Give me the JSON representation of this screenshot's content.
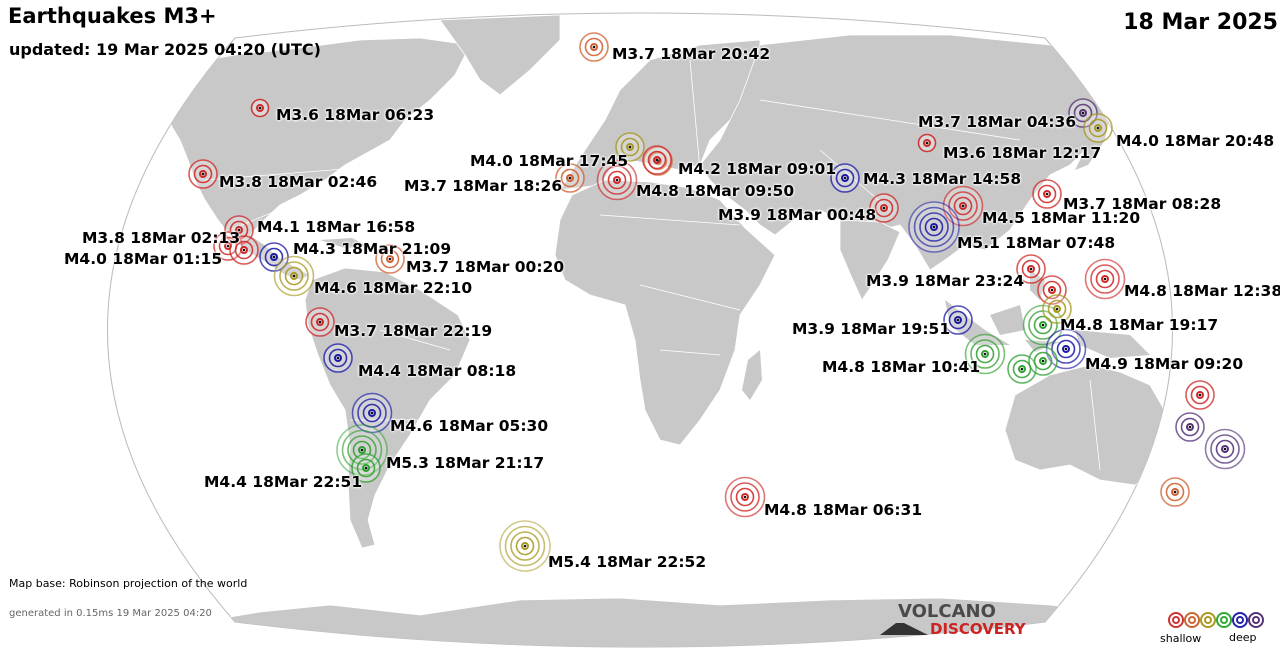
{
  "header": {
    "title": "Earthquakes M3+",
    "updated": "updated: 19 Mar 2025 04:20 (UTC)",
    "date": "18 Mar 2025"
  },
  "footer": {
    "map_base": "Map base: Robinson projection of the world",
    "generated": "generated in 0.15ms 19 Mar 2025 04:20"
  },
  "logo": {
    "line1": "VOLCANO",
    "line2": "DISCOVERY"
  },
  "legend": {
    "shallow_label": "shallow",
    "deep_label": "deep",
    "depth_colors": [
      "#cc3333",
      "#cc6633",
      "#aa9922",
      "#33aa33",
      "#2222aa",
      "#553377"
    ]
  },
  "colors": {
    "land": "#c8c8c8",
    "ocean": "#ffffff",
    "border": "#ffffff",
    "red": "#d02828",
    "orange": "#d06030",
    "olive": "#a89820",
    "green": "#30a030",
    "blue": "#1a1aa8",
    "purple": "#553377"
  },
  "earthquakes": [
    {
      "label": "M3.7 18Mar 20:42",
      "mag": 3.7,
      "color": "orange"
    },
    {
      "label": "M3.6 18Mar 06:23",
      "mag": 3.6,
      "color": "red"
    },
    {
      "label": "M3.8 18Mar 02:46",
      "mag": 3.8,
      "color": "red"
    },
    {
      "label": "M4.1 18Mar 16:58",
      "mag": 4.1,
      "color": "red"
    },
    {
      "label": "M3.8 18Mar 02:13",
      "mag": 3.8,
      "color": "red"
    },
    {
      "label": "M4.0 18Mar 01:15",
      "mag": 4.0,
      "color": "red"
    },
    {
      "label": "M4.3 18Mar 21:09",
      "mag": 4.3,
      "color": "blue"
    },
    {
      "label": "M3.7 18Mar 00:20",
      "mag": 3.7,
      "color": "orange"
    },
    {
      "label": "M4.6 18Mar 22:10",
      "mag": 4.6,
      "color": "olive"
    },
    {
      "label": "M3.7 18Mar 22:19",
      "mag": 3.7,
      "color": "red"
    },
    {
      "label": "M4.4 18Mar 08:18",
      "mag": 4.4,
      "color": "blue"
    },
    {
      "label": "M4.6 18Mar 05:30",
      "mag": 4.6,
      "color": "blue"
    },
    {
      "label": "M5.3 18Mar 21:17",
      "mag": 5.3,
      "color": "green"
    },
    {
      "label": "M4.4 18Mar 22:51",
      "mag": 4.4,
      "color": "green"
    },
    {
      "label": "M5.4 18Mar 22:52",
      "mag": 5.4,
      "color": "olive"
    },
    {
      "label": "M4.8 18Mar 06:31",
      "mag": 4.8,
      "color": "red"
    },
    {
      "label": "M4.0 18Mar 17:45",
      "mag": 4.0,
      "color": "olive"
    },
    {
      "label": "M4.2 18Mar 09:01",
      "mag": 4.2,
      "color": "orange"
    },
    {
      "label": "M3.7 18Mar 18:26",
      "mag": 3.7,
      "color": "orange"
    },
    {
      "label": "M4.8 18Mar 09:50",
      "mag": 4.8,
      "color": "red"
    },
    {
      "label": "M4.3 18Mar 14:58",
      "mag": 4.3,
      "color": "blue"
    },
    {
      "label": "M3.9 18Mar 00:48",
      "mag": 3.9,
      "color": "red"
    },
    {
      "label": "M4.5 18Mar 11:20",
      "mag": 4.5,
      "color": "red"
    },
    {
      "label": "M5.1 18Mar 07:48",
      "mag": 5.1,
      "color": "blue"
    },
    {
      "label": "M3.7 18Mar 04:36",
      "mag": 3.7,
      "color": "purple"
    },
    {
      "label": "M3.6 18Mar 12:17",
      "mag": 3.6,
      "color": "red"
    },
    {
      "label": "M4.0 18Mar 20:48",
      "mag": 4.0,
      "color": "olive"
    },
    {
      "label": "M3.7 18Mar 08:28",
      "mag": 3.7,
      "color": "red"
    },
    {
      "label": "M3.9 18Mar 23:24",
      "mag": 3.9,
      "color": "red"
    },
    {
      "label": "M4.8 18Mar 12:38",
      "mag": 4.8,
      "color": "red"
    },
    {
      "label": "M3.9 18Mar 19:51",
      "mag": 3.9,
      "color": "blue"
    },
    {
      "label": "M4.8 18Mar 19:17",
      "mag": 4.8,
      "color": "green"
    },
    {
      "label": "M4.8 18Mar 10:41",
      "mag": 4.8,
      "color": "green"
    },
    {
      "label": "M4.9 18Mar 09:20",
      "mag": 4.9,
      "color": "blue"
    },
    {
      "label": "",
      "mag": 3.8,
      "color": "red"
    },
    {
      "label": "",
      "mag": 3.9,
      "color": "olive"
    },
    {
      "label": "",
      "mag": 4.0,
      "color": "green"
    },
    {
      "label": "",
      "mag": 4.2,
      "color": "green"
    },
    {
      "label": "",
      "mag": 3.7,
      "color": "red"
    },
    {
      "label": "",
      "mag": 3.8,
      "color": "purple"
    },
    {
      "label": "",
      "mag": 4.6,
      "color": "purple"
    },
    {
      "label": "",
      "mag": 3.9,
      "color": "orange"
    },
    {
      "label": "",
      "mag": 3.7,
      "color": "red"
    }
  ]
}
